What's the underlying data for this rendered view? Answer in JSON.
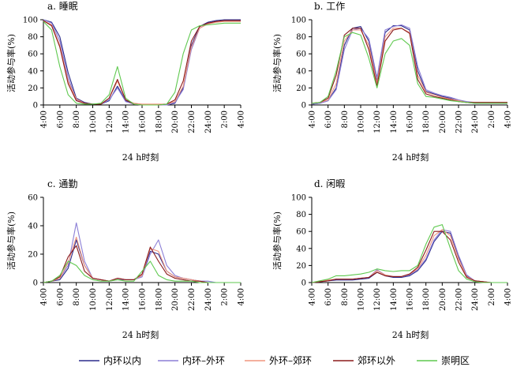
{
  "chart_data": [
    {
      "type": "line",
      "title": "a. 睡眠",
      "xlabel": "24 h时刻",
      "ylabel": "活动参与率(%)",
      "ylim": [
        0,
        100
      ],
      "yticks": [
        "0",
        "20",
        "40",
        "60",
        "80",
        "100"
      ],
      "x": [
        4,
        5,
        6,
        7,
        8,
        9,
        10,
        11,
        12,
        13,
        14,
        15,
        16,
        17,
        18,
        19,
        20,
        21,
        22,
        23,
        24,
        25,
        26,
        27,
        28
      ],
      "xticks": [
        "4:00",
        "6:00",
        "8:00",
        "10:00",
        "12:00",
        "14:00",
        "16:00",
        "18:00",
        "20:00",
        "22:00",
        "24:00",
        "2:00",
        "4:00"
      ],
      "series": [
        {
          "name": "内环以内",
          "values": [
            100,
            97,
            80,
            38,
            8,
            3,
            1,
            1,
            5,
            22,
            5,
            1,
            0,
            0,
            0,
            0,
            2,
            20,
            70,
            92,
            97,
            99,
            100,
            100,
            100
          ]
        },
        {
          "name": "内环–外环",
          "values": [
            100,
            96,
            75,
            32,
            6,
            2,
            1,
            1,
            6,
            20,
            4,
            1,
            0,
            0,
            0,
            0,
            3,
            18,
            65,
            90,
            96,
            98,
            99,
            99,
            99
          ]
        },
        {
          "name": "外环–郊环",
          "values": [
            99,
            94,
            70,
            28,
            7,
            2,
            1,
            1,
            8,
            28,
            6,
            2,
            1,
            1,
            1,
            1,
            4,
            22,
            68,
            90,
            95,
            97,
            98,
            98,
            98
          ]
        },
        {
          "name": "郊环以外",
          "values": [
            99,
            93,
            68,
            25,
            5,
            2,
            1,
            1,
            8,
            30,
            6,
            1,
            0,
            0,
            0,
            1,
            6,
            28,
            75,
            92,
            96,
            98,
            99,
            99,
            99
          ]
        },
        {
          "name": "崇明区",
          "values": [
            98,
            88,
            45,
            12,
            2,
            1,
            1,
            2,
            12,
            45,
            8,
            1,
            0,
            0,
            0,
            1,
            15,
            60,
            88,
            93,
            94,
            95,
            96,
            96,
            96
          ]
        }
      ]
    },
    {
      "type": "line",
      "title": "b. 工作",
      "xlabel": "24 h时刻",
      "ylabel": "活动参与率(%)",
      "ylim": [
        0,
        100
      ],
      "yticks": [
        "0",
        "20",
        "40",
        "60",
        "80",
        "100"
      ],
      "x": [
        4,
        5,
        6,
        7,
        8,
        9,
        10,
        11,
        12,
        13,
        14,
        15,
        16,
        17,
        18,
        19,
        20,
        21,
        22,
        23,
        24,
        25,
        26,
        27,
        28
      ],
      "xticks": [
        "4:00",
        "6:00",
        "8:00",
        "10:00",
        "12:00",
        "14:00",
        "16:00",
        "18:00",
        "20:00",
        "22:00",
        "24:00",
        "2:00",
        "4:00"
      ],
      "series": [
        {
          "name": "内环以内",
          "values": [
            1,
            2,
            5,
            20,
            70,
            90,
            92,
            75,
            28,
            85,
            93,
            93,
            88,
            40,
            16,
            13,
            10,
            8,
            5,
            3,
            2,
            2,
            2,
            2,
            2
          ]
        },
        {
          "name": "内环–外环",
          "values": [
            1,
            2,
            5,
            18,
            65,
            88,
            90,
            78,
            32,
            88,
            92,
            94,
            90,
            45,
            18,
            14,
            11,
            9,
            6,
            4,
            3,
            3,
            3,
            3,
            3
          ]
        },
        {
          "name": "外环–郊环",
          "values": [
            2,
            3,
            6,
            25,
            75,
            88,
            88,
            70,
            26,
            80,
            90,
            90,
            85,
            35,
            15,
            12,
            9,
            7,
            5,
            3,
            3,
            3,
            3,
            3,
            3
          ]
        },
        {
          "name": "郊环以外",
          "values": [
            2,
            3,
            8,
            35,
            82,
            90,
            90,
            65,
            22,
            75,
            88,
            90,
            84,
            30,
            13,
            10,
            8,
            6,
            4,
            3,
            3,
            3,
            3,
            3,
            3
          ]
        },
        {
          "name": "崇明区",
          "values": [
            2,
            3,
            10,
            40,
            80,
            85,
            82,
            55,
            20,
            60,
            75,
            78,
            70,
            25,
            10,
            9,
            7,
            5,
            4,
            3,
            2,
            2,
            2,
            2,
            2
          ]
        }
      ]
    },
    {
      "type": "line",
      "title": "c. 通勤",
      "xlabel": "24 h时刻",
      "ylabel": "活动参与率(%)",
      "ylim": [
        0,
        60
      ],
      "yticks": [
        "0",
        "20",
        "40",
        "60"
      ],
      "x": [
        4,
        5,
        6,
        7,
        8,
        9,
        10,
        11,
        12,
        13,
        14,
        15,
        16,
        17,
        18,
        19,
        20,
        21,
        22,
        23,
        24,
        25,
        26,
        27,
        28
      ],
      "xticks": [
        "4:00",
        "6:00",
        "8:00",
        "10:00",
        "12:00",
        "14:00",
        "16:00",
        "18:00",
        "20:00",
        "22:00",
        "24:00",
        "2:00",
        "4:00"
      ],
      "series": [
        {
          "name": "内环以内",
          "values": [
            0,
            1,
            2,
            10,
            30,
            12,
            3,
            2,
            1,
            3,
            2,
            2,
            5,
            22,
            20,
            8,
            4,
            3,
            2,
            1,
            0,
            0,
            0,
            0,
            0
          ]
        },
        {
          "name": "内环–外环",
          "values": [
            0,
            1,
            3,
            12,
            42,
            15,
            3,
            2,
            1,
            2,
            2,
            2,
            4,
            20,
            30,
            12,
            5,
            3,
            2,
            1,
            1,
            0,
            0,
            0,
            0
          ]
        },
        {
          "name": "外环–郊环",
          "values": [
            0,
            1,
            3,
            14,
            32,
            12,
            3,
            2,
            1,
            3,
            2,
            2,
            5,
            24,
            22,
            8,
            4,
            3,
            2,
            1,
            0,
            0,
            0,
            0,
            0
          ]
        },
        {
          "name": "郊环以外",
          "values": [
            0,
            1,
            4,
            18,
            26,
            8,
            3,
            2,
            1,
            3,
            2,
            2,
            6,
            25,
            15,
            6,
            3,
            2,
            1,
            1,
            0,
            0,
            0,
            0,
            0
          ]
        },
        {
          "name": "崇明区",
          "values": [
            0,
            1,
            5,
            15,
            12,
            5,
            2,
            1,
            1,
            2,
            1,
            1,
            8,
            15,
            5,
            2,
            1,
            1,
            1,
            0,
            0,
            0,
            0,
            0,
            0
          ]
        }
      ]
    },
    {
      "type": "line",
      "title": "d. 闲暇",
      "xlabel": "24 h时刻",
      "ylabel": "活动参与率(%)",
      "ylim": [
        0,
        100
      ],
      "yticks": [
        "0",
        "20",
        "40",
        "60",
        "80",
        "100"
      ],
      "x": [
        4,
        5,
        6,
        7,
        8,
        9,
        10,
        11,
        12,
        13,
        14,
        15,
        16,
        17,
        18,
        19,
        20,
        21,
        22,
        23,
        24,
        25,
        26,
        27,
        28
      ],
      "xticks": [
        "4:00",
        "6:00",
        "8:00",
        "10:00",
        "12:00",
        "14:00",
        "16:00",
        "18:00",
        "20:00",
        "22:00",
        "24:00",
        "2:00",
        "4:00"
      ],
      "series": [
        {
          "name": "内环以内",
          "values": [
            0,
            1,
            2,
            3,
            3,
            3,
            4,
            5,
            12,
            8,
            6,
            6,
            8,
            14,
            26,
            48,
            60,
            58,
            30,
            8,
            2,
            1,
            0,
            0,
            0
          ]
        },
        {
          "name": "内环–外环",
          "values": [
            0,
            1,
            2,
            4,
            4,
            4,
            5,
            6,
            15,
            9,
            7,
            7,
            9,
            15,
            28,
            50,
            62,
            60,
            32,
            9,
            2,
            1,
            0,
            0,
            0
          ]
        },
        {
          "name": "外环–郊环",
          "values": [
            0,
            1,
            3,
            4,
            4,
            4,
            5,
            6,
            14,
            9,
            7,
            7,
            10,
            16,
            32,
            55,
            62,
            55,
            28,
            7,
            2,
            1,
            0,
            0,
            0
          ]
        },
        {
          "name": "郊环以外",
          "values": [
            0,
            1,
            2,
            4,
            4,
            4,
            5,
            6,
            12,
            8,
            7,
            7,
            10,
            18,
            38,
            60,
            60,
            50,
            24,
            6,
            2,
            1,
            0,
            0,
            0
          ]
        },
        {
          "name": "崇明区",
          "values": [
            0,
            2,
            4,
            8,
            8,
            9,
            10,
            12,
            16,
            14,
            13,
            14,
            14,
            20,
            45,
            65,
            68,
            40,
            14,
            4,
            1,
            0,
            0,
            0,
            0
          ]
        }
      ]
    }
  ],
  "legend": {
    "placement": "bottom",
    "items": [
      {
        "label": "内环以内",
        "color": "#2b2b8c"
      },
      {
        "label": "内环–外环",
        "color": "#8c7fd6"
      },
      {
        "label": "外环–郊环",
        "color": "#f0957f"
      },
      {
        "label": "郊环以外",
        "color": "#8b1a1a"
      },
      {
        "label": "崇明区",
        "color": "#5fc94f"
      }
    ]
  }
}
